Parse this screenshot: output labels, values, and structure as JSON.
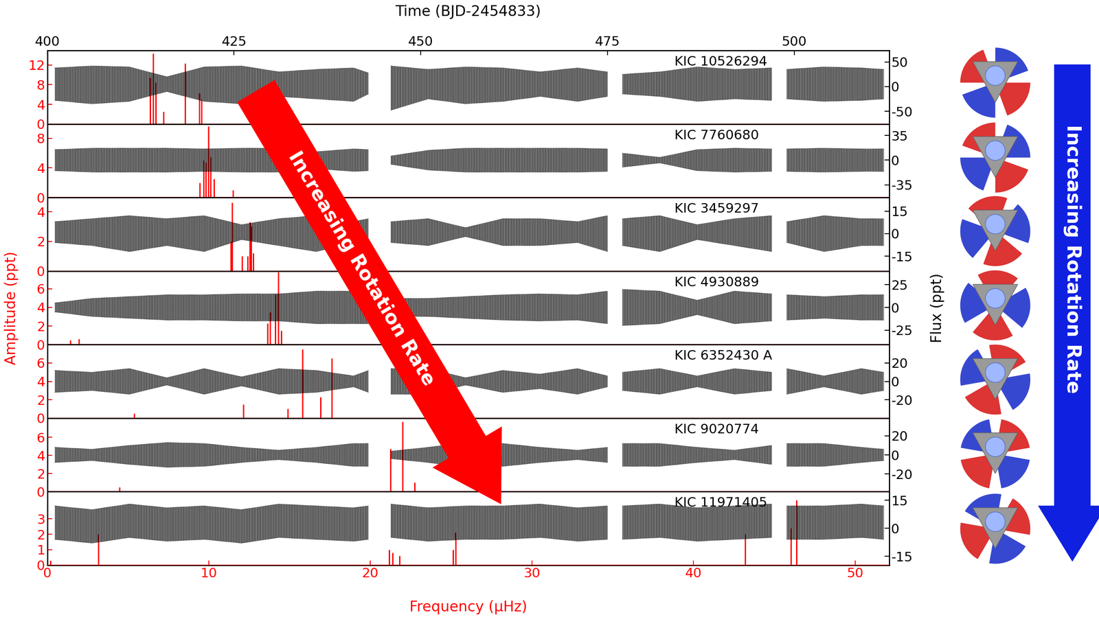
{
  "chart_data": {
    "type": "multi_panel",
    "xlabel": "Frequency (μHz)",
    "x2label": "Time (BJD-2454833)",
    "ylabel": "Amplitude (ppt)",
    "y2label": "Flux (ppt)",
    "xlim": [
      0,
      52.1
    ],
    "xticks": [
      0,
      10,
      20,
      30,
      40,
      50
    ],
    "x2lim": [
      400,
      512.7
    ],
    "x2ticks": [
      400,
      425,
      450,
      475,
      500
    ],
    "annotations": [
      "Increasing Rotation Rate",
      "Increasing Rotation Rate"
    ],
    "time": [
      401,
      406,
      411,
      416,
      421,
      426,
      431,
      436,
      441,
      443,
      444,
      446,
      451,
      456,
      461,
      466,
      471,
      475,
      476,
      477,
      482,
      487,
      492,
      497,
      498,
      499,
      504,
      509,
      512
    ],
    "panels": [
      {
        "title": "KIC 10526294",
        "ylim": [
          0,
          14.9
        ],
        "yticks": [
          0,
          4,
          8,
          12
        ],
        "y2lim": [
          -76,
          73
        ],
        "y2ticks": [
          -50,
          0,
          50
        ],
        "peaks": {
          "x": [
            6.37,
            6.55,
            6.72,
            7.2,
            8.54,
            9.41,
            9.54
          ],
          "values": [
            9.4,
            14.3,
            8.5,
            2.5,
            12.3,
            6.3,
            5.0
          ],
          "color": "#ff0000"
        },
        "light_curve": {
          "upper": [
            38,
            42,
            40,
            20,
            40,
            42,
            30,
            35,
            38,
            28,
            null,
            42,
            35,
            40,
            38,
            30,
            38,
            30,
            null,
            25,
            30,
            40,
            35,
            38,
            null,
            35,
            40,
            38,
            35
          ],
          "lower": [
            -28,
            -35,
            -30,
            -10,
            -30,
            -35,
            -20,
            -25,
            -30,
            -15,
            null,
            -48,
            -25,
            -35,
            -30,
            -20,
            -30,
            -20,
            null,
            -15,
            -20,
            -30,
            -25,
            -28,
            null,
            -25,
            -30,
            -28,
            -25
          ],
          "color": "#000000"
        }
      },
      {
        "title": "KIC 7760680",
        "ylim": [
          0,
          9.9
        ],
        "yticks": [
          0,
          4,
          8
        ],
        "y2lim": [
          -53,
          51
        ],
        "y2ticks": [
          -35,
          0,
          35
        ],
        "peaks": {
          "x": [
            9.45,
            9.67,
            9.8,
            9.97,
            10.1,
            10.32,
            11.49
          ],
          "values": [
            2.0,
            5.0,
            4.7,
            9.6,
            5.5,
            2.5,
            1.0
          ],
          "color": "#ff0000"
        },
        "light_curve": {
          "upper": [
            15,
            17,
            17,
            17,
            16,
            17,
            17,
            12,
            16,
            15,
            null,
            6,
            14,
            17,
            17,
            17,
            17,
            16,
            null,
            10,
            4,
            15,
            17,
            16,
            null,
            16,
            17,
            16,
            16
          ],
          "lower": [
            -15,
            -17,
            -17,
            -17,
            -16,
            -17,
            -17,
            -12,
            -16,
            -15,
            null,
            -6,
            -14,
            -17,
            -17,
            -17,
            -17,
            -16,
            null,
            -10,
            -4,
            -15,
            -17,
            -16,
            null,
            -16,
            -17,
            -16,
            -16
          ],
          "color": "#000000"
        }
      },
      {
        "title": "KIC 3459297",
        "ylim": [
          0,
          4.95
        ],
        "yticks": [
          0,
          2,
          4
        ],
        "y2lim": [
          -25,
          24
        ],
        "y2ticks": [
          -15,
          0,
          15
        ],
        "peaks": {
          "x": [
            11.36,
            11.45,
            12.06,
            12.4,
            12.53,
            12.62,
            12.75
          ],
          "values": [
            2.0,
            4.6,
            1.0,
            1.0,
            3.3,
            3.0,
            1.2
          ],
          "color": "#ff0000"
        },
        "light_curve": {
          "upper": [
            8,
            10,
            12,
            10,
            12,
            6,
            10,
            12,
            8,
            10,
            null,
            8,
            10,
            4,
            10,
            10,
            8,
            12,
            null,
            10,
            12,
            6,
            10,
            12,
            null,
            8,
            12,
            10,
            10
          ],
          "lower": [
            -6,
            -8,
            -12,
            -8,
            -12,
            -4,
            -8,
            -12,
            -6,
            -8,
            null,
            -6,
            -8,
            -2,
            -8,
            -8,
            -6,
            -12,
            null,
            -8,
            -12,
            -4,
            -8,
            -12,
            null,
            -6,
            -12,
            -8,
            -8
          ],
          "color": "#000000"
        }
      },
      {
        "title": "KIC 4930889",
        "ylim": [
          0,
          7.9
        ],
        "yticks": [
          0,
          2,
          4,
          6
        ],
        "y2lim": [
          -41,
          40
        ],
        "y2ticks": [
          -25,
          0,
          25
        ],
        "peaks": {
          "x": [
            1.43,
            1.95,
            13.62,
            13.79,
            14.1,
            14.31,
            14.49
          ],
          "values": [
            0.5,
            0.6,
            2.3,
            3.5,
            5.4,
            7.8,
            1.5
          ],
          "color": "#ff0000"
        },
        "light_curve": {
          "upper": [
            5,
            10,
            12,
            14,
            14,
            15,
            15,
            18,
            18,
            18,
            null,
            10,
            10,
            12,
            14,
            15,
            14,
            18,
            null,
            20,
            18,
            8,
            18,
            15,
            null,
            14,
            12,
            14,
            14
          ],
          "lower": [
            -5,
            -10,
            -12,
            -14,
            -14,
            -15,
            -15,
            -18,
            -18,
            -18,
            null,
            -10,
            -10,
            -12,
            -14,
            -15,
            -14,
            -18,
            null,
            -20,
            -18,
            -8,
            -18,
            -15,
            null,
            -14,
            -12,
            -14,
            -14
          ],
          "color": "#000000"
        }
      },
      {
        "title": "KIC 6352430 A",
        "ylim": [
          0,
          8.0
        ],
        "yticks": [
          0,
          2,
          4,
          6
        ],
        "y2lim": [
          -40,
          40
        ],
        "y2ticks": [
          -20,
          0,
          20
        ],
        "peaks": {
          "x": [
            5.38,
            12.14,
            14.88,
            15.79,
            16.91,
            17.61
          ],
          "values": [
            0.5,
            1.5,
            1.0,
            7.5,
            2.3,
            6.5
          ],
          "color": "#ff0000"
        },
        "light_curve": {
          "upper": [
            12,
            10,
            14,
            4,
            14,
            5,
            14,
            12,
            6,
            12,
            null,
            14,
            14,
            4,
            12,
            8,
            14,
            6,
            null,
            10,
            14,
            6,
            14,
            10,
            null,
            14,
            6,
            14,
            10
          ],
          "lower": [
            -12,
            -10,
            -14,
            -4,
            -14,
            -5,
            -14,
            -12,
            -6,
            -12,
            null,
            -14,
            -14,
            -4,
            -12,
            -8,
            -14,
            -6,
            null,
            -10,
            -14,
            -6,
            -14,
            -10,
            null,
            -14,
            -6,
            -14,
            -10
          ],
          "color": "#000000"
        }
      },
      {
        "title": "KIC 9020774",
        "ylim": [
          0,
          8.1
        ],
        "yticks": [
          0,
          2,
          4,
          6
        ],
        "y2lim": [
          -38.5,
          38.5
        ],
        "y2ticks": [
          -20,
          0,
          20
        ],
        "peaks": {
          "x": [
            4.47,
            21.25,
            21.99,
            22.73
          ],
          "values": [
            0.5,
            4.7,
            7.7,
            1.0
          ],
          "color": "#ff0000"
        },
        "light_curve": {
          "upper": [
            8,
            6,
            10,
            13,
            12,
            8,
            5,
            8,
            12,
            12,
            null,
            4,
            8,
            13,
            12,
            8,
            5,
            8,
            null,
            12,
            12,
            8,
            5,
            10,
            null,
            12,
            12,
            8,
            6
          ],
          "lower": [
            -8,
            -6,
            -10,
            -13,
            -12,
            -8,
            -5,
            -8,
            -12,
            -12,
            null,
            -4,
            -8,
            -13,
            -12,
            -8,
            -5,
            -8,
            null,
            -12,
            -12,
            -8,
            -5,
            -10,
            null,
            -12,
            -12,
            -8,
            -6
          ],
          "color": "#000000"
        }
      },
      {
        "title": "KIC 11971405",
        "ylim": [
          0,
          4.75
        ],
        "yticks": [
          0,
          1,
          2,
          3
        ],
        "y2lim": [
          -19.8,
          19.6
        ],
        "y2ticks": [
          -15,
          0,
          15
        ],
        "peaks": {
          "x": [
            0.2,
            3.17,
            21.16,
            21.38,
            21.81,
            25.11,
            25.28,
            43.2,
            46.02,
            46.36
          ],
          "values": [
            0.3,
            2.0,
            1.0,
            0.8,
            0.6,
            1.0,
            2.1,
            2.0,
            2.4,
            4.2
          ],
          "color": "#ff0000"
        },
        "light_curve": {
          "upper": [
            12,
            10,
            13,
            11,
            12,
            10,
            13,
            12,
            11,
            12,
            null,
            13,
            11,
            12,
            12,
            13,
            11,
            12,
            null,
            12,
            13,
            11,
            12,
            13,
            null,
            12,
            12,
            13,
            12
          ],
          "lower": [
            -6,
            -8,
            -5,
            -7,
            -6,
            -8,
            -5,
            -6,
            -7,
            -6,
            null,
            -5,
            -7,
            -6,
            -6,
            -5,
            -7,
            -6,
            null,
            -6,
            -5,
            -7,
            -6,
            -5,
            null,
            -6,
            -6,
            -5,
            -6
          ],
          "color": "#000000"
        }
      }
    ]
  }
}
